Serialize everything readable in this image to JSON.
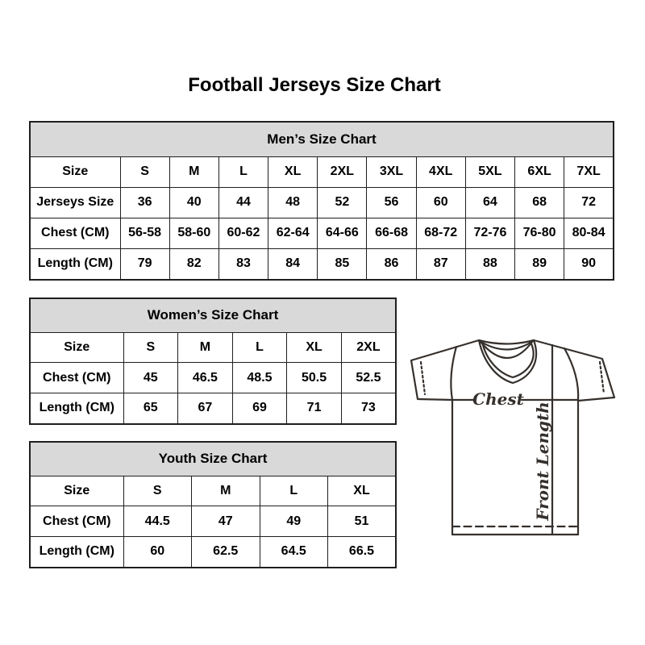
{
  "page": {
    "title": "Football Jerseys Size Chart"
  },
  "colors": {
    "background": "#ffffff",
    "table_header_bg": "#d9d9d9",
    "table_border": "#1f1f1f",
    "text": "#000000",
    "diagram_stroke": "#35302c"
  },
  "tables": {
    "men": {
      "title": "Men’s Size Chart",
      "rows": [
        {
          "label": "Size",
          "values": [
            "S",
            "M",
            "L",
            "XL",
            "2XL",
            "3XL",
            "4XL",
            "5XL",
            "6XL",
            "7XL"
          ]
        },
        {
          "label": "Jerseys Size",
          "values": [
            "36",
            "40",
            "44",
            "48",
            "52",
            "56",
            "60",
            "64",
            "68",
            "72"
          ]
        },
        {
          "label": "Chest (CM)",
          "values": [
            "56-58",
            "58-60",
            "60-62",
            "62-64",
            "64-66",
            "66-68",
            "68-72",
            "72-76",
            "76-80",
            "80-84"
          ]
        },
        {
          "label": "Length (CM)",
          "values": [
            "79",
            "82",
            "83",
            "84",
            "85",
            "86",
            "87",
            "88",
            "89",
            "90"
          ]
        }
      ]
    },
    "women": {
      "title": "Women’s Size Chart",
      "rows": [
        {
          "label": "Size",
          "values": [
            "S",
            "M",
            "L",
            "XL",
            "2XL"
          ]
        },
        {
          "label": "Chest (CM)",
          "values": [
            "45",
            "46.5",
            "48.5",
            "50.5",
            "52.5"
          ]
        },
        {
          "label": "Length (CM)",
          "values": [
            "65",
            "67",
            "69",
            "71",
            "73"
          ]
        }
      ]
    },
    "youth": {
      "title": "Youth Size Chart",
      "rows": [
        {
          "label": "Size",
          "values": [
            "S",
            "M",
            "L",
            "XL"
          ]
        },
        {
          "label": "Chest (CM)",
          "values": [
            "44.5",
            "47",
            "49",
            "51"
          ]
        },
        {
          "label": "Length (CM)",
          "values": [
            "60",
            "62.5",
            "64.5",
            "66.5"
          ]
        }
      ]
    }
  },
  "diagram": {
    "chest_label": "Chest",
    "front_length_label": "Front Length"
  }
}
